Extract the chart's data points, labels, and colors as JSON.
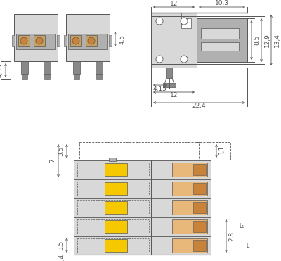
{
  "bg_color": "#ffffff",
  "line_color": "#555555",
  "light_gray": "#d8d8d8",
  "mid_gray": "#b0b0b0",
  "dark_gray": "#888888",
  "darker_gray": "#666666",
  "yellow_color": "#f5c800",
  "orange_color": "#c8823a",
  "orange_light": "#e8b87a",
  "dim_fontsize": 6.5,
  "dim_fontsize_sm": 6.0
}
